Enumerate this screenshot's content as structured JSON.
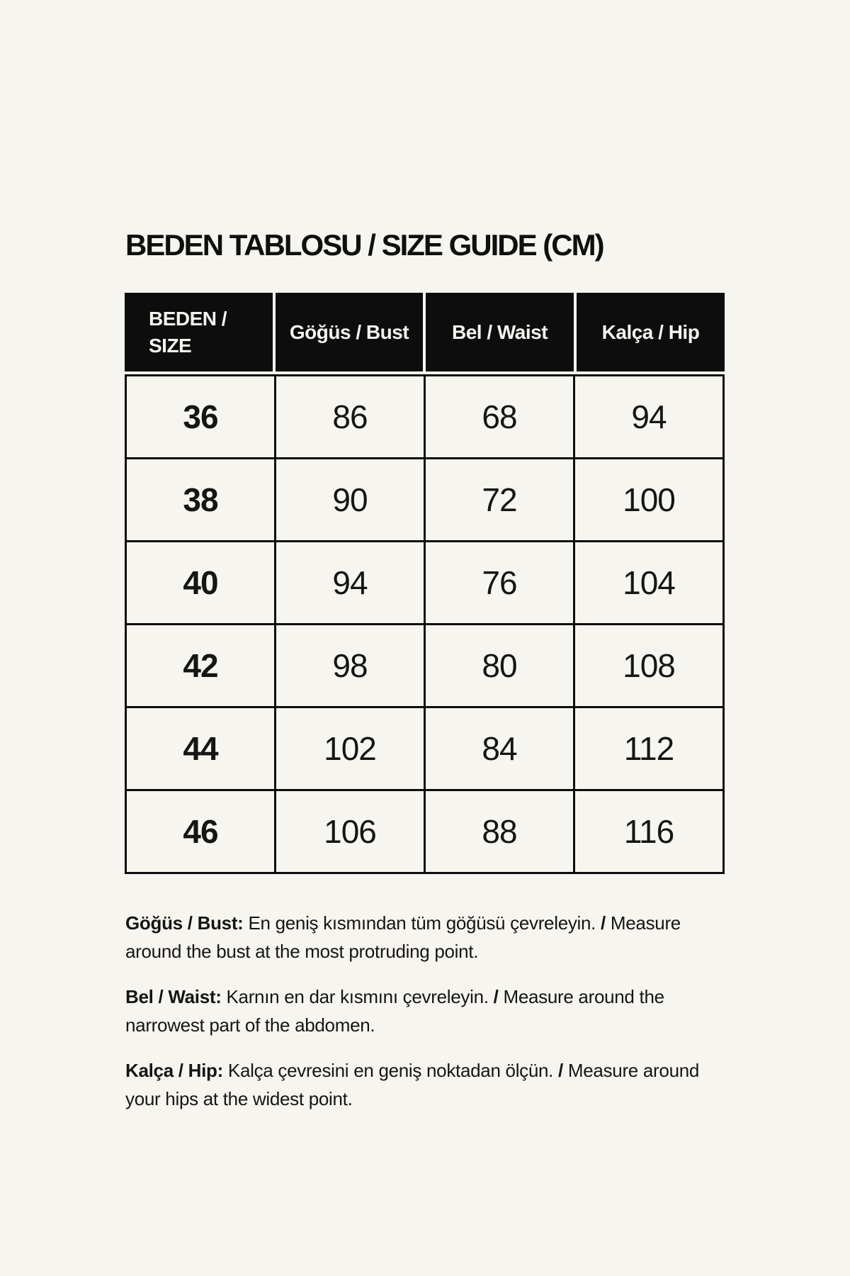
{
  "page": {
    "title": "BEDEN TABLOSU / SIZE GUIDE (CM)",
    "colors": {
      "background": "#f7f5ef",
      "header_black": "#0d0d0d",
      "header_text": "#f6f4ee",
      "body_text": "#151515"
    }
  },
  "size_table": {
    "columns": [
      {
        "id": "size",
        "label_lines": [
          "BEDEN /",
          "SIZE"
        ]
      },
      {
        "id": "bust",
        "label_lines": [
          "Göğüs / Bust"
        ]
      },
      {
        "id": "waist",
        "label_lines": [
          "Bel / Waist"
        ]
      },
      {
        "id": "hip",
        "label_lines": [
          "Kalça / Hip"
        ]
      }
    ],
    "rows": [
      {
        "size": "36",
        "bust": "86",
        "waist": "68",
        "hip": "94"
      },
      {
        "size": "38",
        "bust": "90",
        "waist": "72",
        "hip": "100"
      },
      {
        "size": "40",
        "bust": "94",
        "waist": "76",
        "hip": "104"
      },
      {
        "size": "42",
        "bust": "98",
        "waist": "80",
        "hip": "108"
      },
      {
        "size": "44",
        "bust": "102",
        "waist": "84",
        "hip": "112"
      },
      {
        "size": "46",
        "bust": "106",
        "waist": "88",
        "hip": "116"
      }
    ]
  },
  "notes": [
    {
      "id": "bust-note",
      "lines": [
        [
          {
            "t": "Göğüs / Bust:",
            "b": true
          },
          {
            "t": " En geniş kısmından tüm göğüsü çevreleyin. ",
            "b": false
          },
          {
            "t": "/",
            "b": true
          },
          {
            "t": " Measure",
            "b": false
          }
        ],
        [
          {
            "t": "around the bust at the most protruding point.",
            "b": false
          }
        ]
      ]
    },
    {
      "id": "waist-note",
      "lines": [
        [
          {
            "t": "Bel / Waist:",
            "b": true
          },
          {
            "t": " Karnın en dar kısmını çevreleyin. ",
            "b": false
          },
          {
            "t": "/",
            "b": true
          },
          {
            "t": " Measure around the",
            "b": false
          }
        ],
        [
          {
            "t": "narrowest part of the abdomen.",
            "b": false
          }
        ]
      ]
    },
    {
      "id": "hip-note",
      "lines": [
        [
          {
            "t": "Kalça / Hip:",
            "b": true
          },
          {
            "t": " Kalça çevresini en geniş noktadan ölçün. ",
            "b": false
          },
          {
            "t": "/",
            "b": true
          },
          {
            "t": " Measure around",
            "b": false
          }
        ],
        [
          {
            "t": "your hips at the widest point.",
            "b": false
          }
        ]
      ]
    }
  ]
}
